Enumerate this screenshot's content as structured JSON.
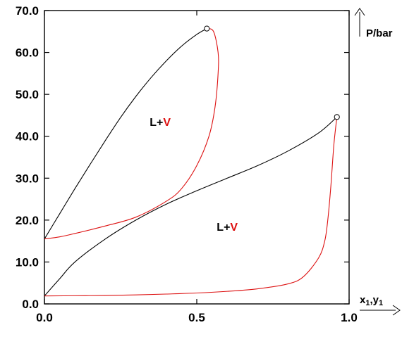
{
  "chart_data": {
    "type": "line",
    "title": "",
    "xlabel": "x1,y1",
    "xlabel_parts": {
      "main_x": "x",
      "sub_x": "1",
      "sep": ",",
      "main_y": "y",
      "sub_y": "1"
    },
    "ylabel": "P/bar",
    "xlim": [
      0.0,
      1.0
    ],
    "ylim": [
      0.0,
      70.0
    ],
    "x_ticks": [
      0.0,
      0.5,
      1.0
    ],
    "x_tick_labels": [
      "0.0",
      "0.5",
      "1.0"
    ],
    "y_ticks": [
      0,
      10,
      20,
      30,
      40,
      50,
      60,
      70
    ],
    "y_tick_labels": [
      "0.0",
      "10.0",
      "20.0",
      "30.0",
      "40.0",
      "50.0",
      "60.0",
      "70.0"
    ],
    "grid": false,
    "legend": "none",
    "colors": {
      "liquid": "#000000",
      "vapor": "#dd1111",
      "axes": "#000000"
    },
    "series": [
      {
        "color": "#000000",
        "points": [
          [
            0.0,
            15.5
          ],
          [
            0.05,
            21.5
          ],
          [
            0.1,
            27.5
          ],
          [
            0.15,
            33.3
          ],
          [
            0.2,
            39.0
          ],
          [
            0.25,
            44.5
          ],
          [
            0.3,
            49.5
          ],
          [
            0.35,
            54.0
          ],
          [
            0.4,
            58.0
          ],
          [
            0.45,
            61.5
          ],
          [
            0.5,
            64.3
          ],
          [
            0.533,
            65.7
          ]
        ]
      },
      {
        "color": "#dd1111",
        "points": [
          [
            0.533,
            65.7
          ],
          [
            0.555,
            65.0
          ],
          [
            0.57,
            60.0
          ],
          [
            0.57,
            55.0
          ],
          [
            0.56,
            47.0
          ],
          [
            0.54,
            40.0
          ],
          [
            0.5,
            33.0
          ],
          [
            0.45,
            27.5
          ],
          [
            0.4,
            24.5
          ],
          [
            0.3,
            20.7
          ],
          [
            0.2,
            18.6
          ],
          [
            0.1,
            16.8
          ],
          [
            0.05,
            16.0
          ],
          [
            0.0,
            15.5
          ]
        ]
      },
      {
        "color": "#000000",
        "points": [
          [
            0.0,
            1.9
          ],
          [
            0.05,
            6.0
          ],
          [
            0.1,
            10.0
          ],
          [
            0.2,
            15.5
          ],
          [
            0.3,
            20.0
          ],
          [
            0.4,
            23.8
          ],
          [
            0.5,
            27.0
          ],
          [
            0.6,
            30.0
          ],
          [
            0.7,
            33.0
          ],
          [
            0.8,
            36.5
          ],
          [
            0.9,
            40.8
          ],
          [
            0.96,
            44.6
          ]
        ]
      },
      {
        "color": "#dd1111",
        "points": [
          [
            0.96,
            44.6
          ],
          [
            0.95,
            38.0
          ],
          [
            0.94,
            28.0
          ],
          [
            0.93,
            20.0
          ],
          [
            0.92,
            15.0
          ],
          [
            0.9,
            11.0
          ],
          [
            0.85,
            6.5
          ],
          [
            0.8,
            4.8
          ],
          [
            0.7,
            3.6
          ],
          [
            0.6,
            3.0
          ],
          [
            0.5,
            2.6
          ],
          [
            0.4,
            2.35
          ],
          [
            0.3,
            2.15
          ],
          [
            0.2,
            2.0
          ],
          [
            0.1,
            1.95
          ],
          [
            0.0,
            1.9
          ]
        ]
      }
    ],
    "critical_points": [
      [
        0.533,
        65.7
      ],
      [
        0.96,
        44.6
      ]
    ],
    "annotations": [
      {
        "text_l": "L+",
        "text_v": "V",
        "x": 0.38,
        "y": 42.5
      },
      {
        "text_l": "L+",
        "text_v": "V",
        "x": 0.6,
        "y": 17.5
      }
    ]
  }
}
